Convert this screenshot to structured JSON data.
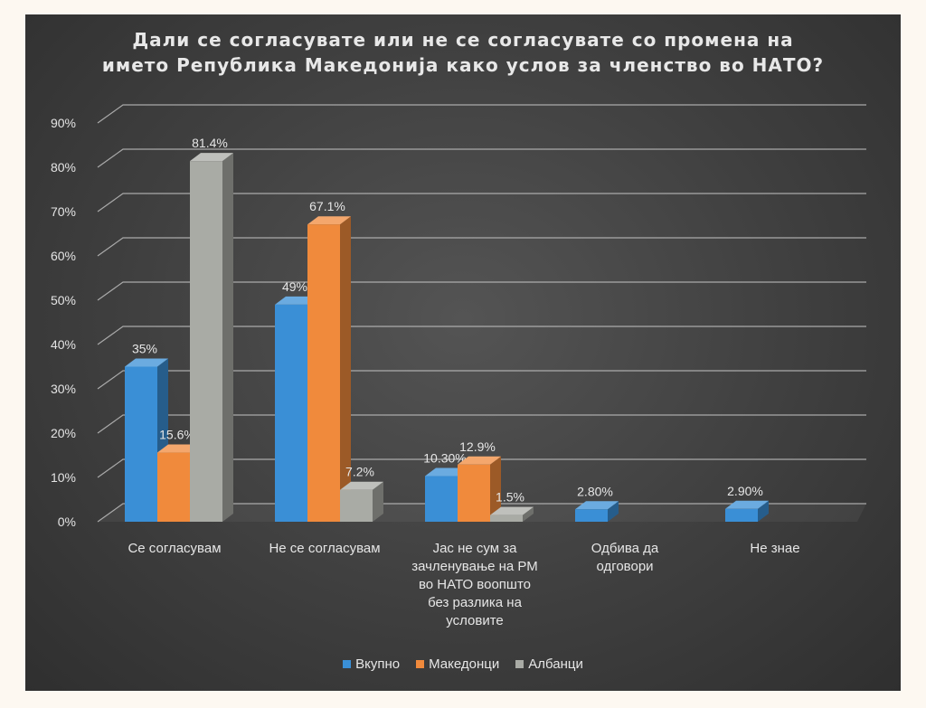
{
  "chart_data": {
    "type": "bar",
    "title_lines": [
      "Дали се согласувате или не се согласувате со промена на",
      "името Република Македонија како услов за членство во НАТО?"
    ],
    "categories": [
      [
        "Се согласувам"
      ],
      [
        "Не се согласувам"
      ],
      [
        "Јас не сум за",
        "зачленување на РМ",
        "во НАТО воопшто",
        "без разлика на",
        "условите"
      ],
      [
        "Одбива да",
        "одговори"
      ],
      [
        "Не знае"
      ]
    ],
    "series": [
      {
        "name": "Вкупно",
        "color": "#3a8fd6",
        "values": [
          35,
          49,
          10.3,
          2.8,
          2.9
        ],
        "labels": [
          "35%",
          "49%",
          "10.30%",
          "2.80%",
          "2.90%"
        ]
      },
      {
        "name": "Македонци",
        "color": "#f08a3c",
        "values": [
          15.6,
          67.1,
          12.9,
          null,
          null
        ],
        "labels": [
          "15.6%",
          "67.1%",
          "12.9%",
          "",
          ""
        ]
      },
      {
        "name": "Албанци",
        "color": "#a9aba5",
        "values": [
          81.4,
          7.2,
          1.5,
          null,
          null
        ],
        "labels": [
          "81.4%",
          "7.2%",
          "1.5%",
          "",
          ""
        ]
      }
    ],
    "y_ticks": [
      "0%",
      "10%",
      "20%",
      "30%",
      "40%",
      "50%",
      "60%",
      "70%",
      "80%",
      "90%"
    ],
    "ylim": [
      0,
      90
    ],
    "grid": true,
    "legend_position": "bottom"
  }
}
